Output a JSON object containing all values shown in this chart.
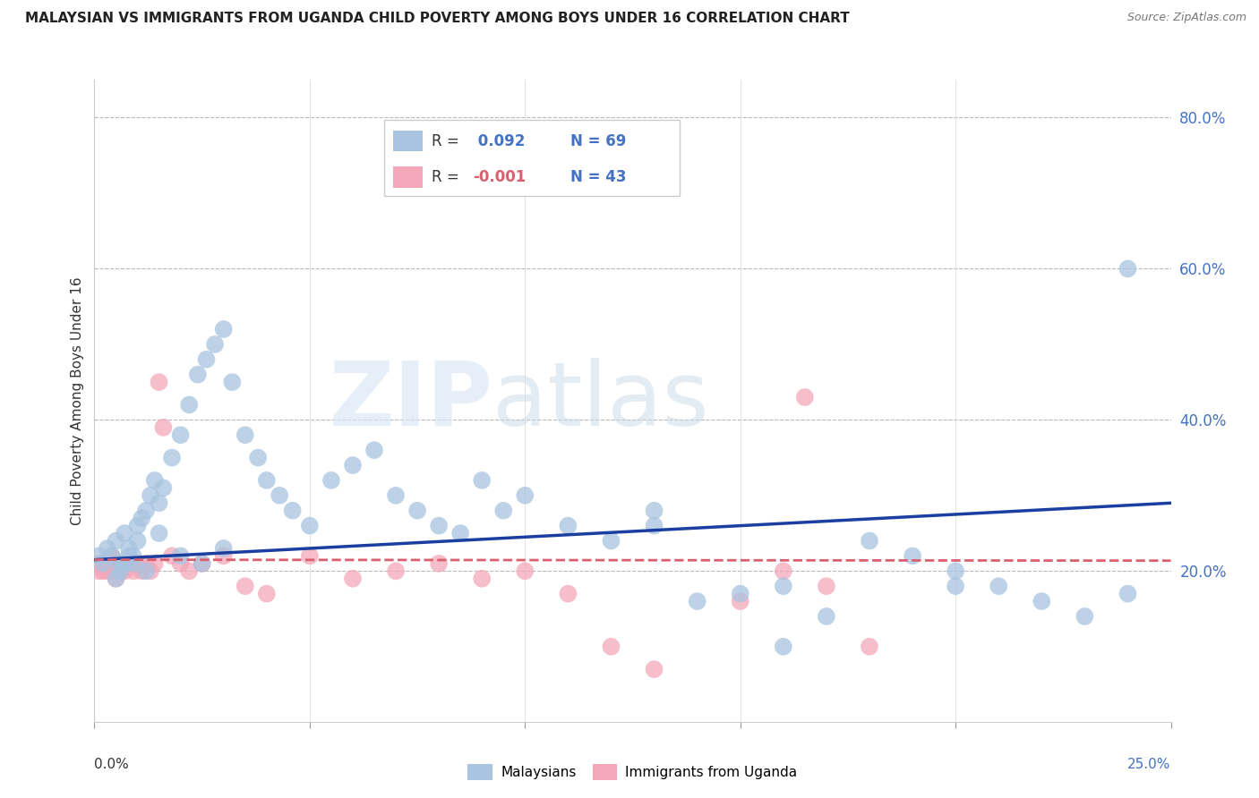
{
  "title": "MALAYSIAN VS IMMIGRANTS FROM UGANDA CHILD POVERTY AMONG BOYS UNDER 16 CORRELATION CHART",
  "source": "Source: ZipAtlas.com",
  "ylabel": "Child Poverty Among Boys Under 16",
  "watermark_zip": "ZIP",
  "watermark_atlas": "atlas",
  "legend_blue_label": "Malaysians",
  "legend_pink_label": "Immigrants from Uganda",
  "r_blue": " 0.092",
  "n_blue": "69",
  "r_pink": "-0.001",
  "n_pink": "43",
  "blue_color": "#a8c4e0",
  "pink_color": "#f4a7b9",
  "trendline_blue": "#1a3fa0",
  "trendline_pink": "#d9606e",
  "xlim": [
    0.0,
    0.25
  ],
  "ylim": [
    0.0,
    0.85
  ],
  "right_ytick_vals": [
    0.2,
    0.4,
    0.6,
    0.8
  ],
  "hgrid_vals": [
    0.2,
    0.4,
    0.6,
    0.8
  ],
  "background_color": "#ffffff",
  "malaysians_x": [
    0.001,
    0.002,
    0.003,
    0.004,
    0.005,
    0.006,
    0.007,
    0.008,
    0.009,
    0.01,
    0.011,
    0.012,
    0.013,
    0.014,
    0.015,
    0.016,
    0.018,
    0.02,
    0.022,
    0.024,
    0.026,
    0.028,
    0.03,
    0.032,
    0.035,
    0.038,
    0.04,
    0.043,
    0.046,
    0.05,
    0.055,
    0.06,
    0.065,
    0.07,
    0.075,
    0.08,
    0.085,
    0.09,
    0.095,
    0.1,
    0.11,
    0.12,
    0.13,
    0.14,
    0.15,
    0.16,
    0.17,
    0.18,
    0.19,
    0.2,
    0.21,
    0.22,
    0.23,
    0.24,
    0.005,
    0.006,
    0.007,
    0.008,
    0.009,
    0.01,
    0.012,
    0.015,
    0.02,
    0.025,
    0.03,
    0.24,
    0.2,
    0.16,
    0.13
  ],
  "malaysians_y": [
    0.22,
    0.21,
    0.23,
    0.22,
    0.24,
    0.21,
    0.25,
    0.22,
    0.21,
    0.26,
    0.27,
    0.28,
    0.3,
    0.32,
    0.29,
    0.31,
    0.35,
    0.38,
    0.42,
    0.46,
    0.48,
    0.5,
    0.52,
    0.45,
    0.38,
    0.35,
    0.32,
    0.3,
    0.28,
    0.26,
    0.32,
    0.34,
    0.36,
    0.3,
    0.28,
    0.26,
    0.25,
    0.32,
    0.28,
    0.3,
    0.26,
    0.24,
    0.28,
    0.16,
    0.17,
    0.18,
    0.14,
    0.24,
    0.22,
    0.2,
    0.18,
    0.16,
    0.14,
    0.17,
    0.19,
    0.2,
    0.21,
    0.23,
    0.22,
    0.24,
    0.2,
    0.25,
    0.22,
    0.21,
    0.23,
    0.6,
    0.18,
    0.1,
    0.26
  ],
  "uganda_x": [
    0.001,
    0.001,
    0.002,
    0.002,
    0.003,
    0.003,
    0.004,
    0.004,
    0.005,
    0.005,
    0.006,
    0.006,
    0.007,
    0.008,
    0.009,
    0.01,
    0.011,
    0.012,
    0.013,
    0.014,
    0.015,
    0.016,
    0.018,
    0.02,
    0.022,
    0.025,
    0.03,
    0.035,
    0.04,
    0.05,
    0.06,
    0.07,
    0.08,
    0.09,
    0.1,
    0.11,
    0.12,
    0.13,
    0.15,
    0.16,
    0.165,
    0.17,
    0.18
  ],
  "uganda_y": [
    0.21,
    0.2,
    0.21,
    0.2,
    0.2,
    0.21,
    0.22,
    0.2,
    0.21,
    0.19,
    0.2,
    0.21,
    0.2,
    0.21,
    0.2,
    0.21,
    0.2,
    0.21,
    0.2,
    0.21,
    0.45,
    0.39,
    0.22,
    0.21,
    0.2,
    0.21,
    0.22,
    0.18,
    0.17,
    0.22,
    0.19,
    0.2,
    0.21,
    0.19,
    0.2,
    0.17,
    0.1,
    0.07,
    0.16,
    0.2,
    0.43,
    0.18,
    0.1
  ]
}
